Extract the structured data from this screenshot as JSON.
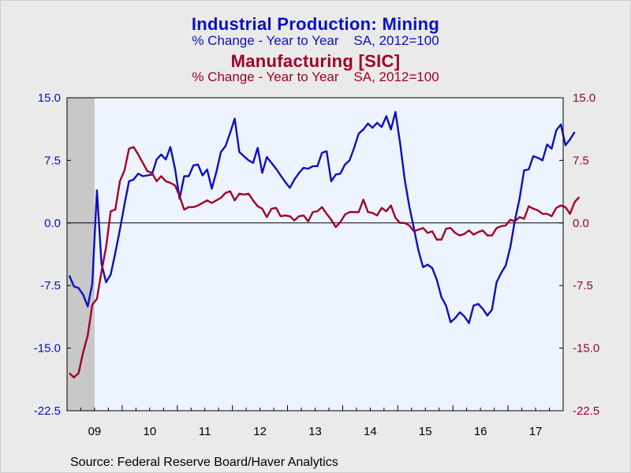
{
  "titles": {
    "mining_title": "Industrial Production: Mining",
    "mining_subtitle": "% Change - Year to Year    SA, 2012=100",
    "manufacturing_title": "Manufacturing [SIC]",
    "manufacturing_subtitle": "% Change - Year to Year    SA, 2012=100"
  },
  "source": "Source:  Federal Reserve Board/Haver Analytics",
  "colors": {
    "mining": "#0a10c0",
    "manufacturing": "#a00028",
    "plot_bg": "#eef4ff",
    "recession": "#c8c8c8"
  },
  "chart_data": {
    "type": "line",
    "x_start": "2009-01",
    "x_end": "2017-12",
    "ylim": [
      -22.5,
      15.0
    ],
    "yticks_left": [
      "15.0",
      "7.5",
      "0.0",
      "-7.5",
      "-15.0",
      "-22.5"
    ],
    "yticks_right": [
      "15.0",
      "7.5",
      "0.0",
      "-7.5",
      "-15.0",
      "-22.5"
    ],
    "xticks": [
      "09",
      "10",
      "11",
      "12",
      "13",
      "14",
      "15",
      "16",
      "17"
    ],
    "zero_line": true,
    "recession_shading": [
      "2009-01",
      "2009-06"
    ],
    "series": [
      {
        "name": "Industrial Production: Mining",
        "color": "#0a10c0",
        "axis": "left",
        "values": [
          -6.3,
          -7.6,
          -7.8,
          -8.6,
          -10.0,
          -7.3,
          3.9,
          -4.9,
          -7.1,
          -6.2,
          -3.6,
          -0.8,
          2.2,
          5.0,
          5.2,
          5.9,
          5.6,
          5.7,
          5.8,
          7.6,
          8.2,
          7.6,
          9.1,
          6.5,
          2.9,
          5.6,
          5.6,
          6.9,
          7.0,
          5.7,
          6.4,
          4.1,
          6.1,
          8.5,
          9.2,
          10.8,
          12.5,
          8.5,
          8.0,
          7.5,
          7.2,
          9.0,
          6.0,
          7.9,
          7.2,
          6.5,
          5.7,
          4.9,
          4.2,
          5.2,
          6.0,
          6.6,
          6.5,
          6.8,
          6.8,
          8.4,
          8.6,
          5.0,
          5.8,
          5.9,
          7.0,
          7.5,
          9.0,
          10.7,
          11.2,
          11.9,
          11.4,
          12.0,
          11.5,
          12.8,
          11.2,
          13.3,
          9.6,
          5.2,
          2.0,
          -0.6,
          -3.3,
          -5.3,
          -5.0,
          -5.4,
          -6.8,
          -8.9,
          -9.9,
          -11.9,
          -11.4,
          -10.7,
          -11.2,
          -12.0,
          -9.9,
          -9.7,
          -10.3,
          -11.1,
          -10.4,
          -7.1,
          -6.0,
          -5.1,
          -2.9,
          0.3,
          2.9,
          6.3,
          6.4,
          8.0,
          7.8,
          7.5,
          9.4,
          8.9,
          11.1,
          11.8,
          9.3,
          10.0,
          10.9
        ]
      },
      {
        "name": "Manufacturing [SIC]",
        "color": "#a00028",
        "axis": "right",
        "values": [
          -18.0,
          -18.5,
          -18.0,
          -15.5,
          -13.5,
          -9.8,
          -9.1,
          -5.8,
          -2.9,
          1.4,
          1.6,
          5.0,
          6.3,
          8.9,
          9.1,
          8.2,
          7.2,
          6.2,
          6.0,
          5.0,
          5.6,
          5.0,
          4.8,
          4.5,
          3.2,
          1.6,
          1.9,
          1.9,
          2.1,
          2.4,
          2.7,
          2.4,
          2.7,
          3.0,
          3.6,
          3.8,
          2.7,
          3.5,
          3.4,
          3.5,
          2.7,
          2.0,
          1.7,
          0.7,
          1.7,
          1.8,
          0.8,
          0.9,
          0.8,
          0.3,
          0.8,
          0.9,
          0.2,
          1.3,
          1.4,
          1.9,
          1.1,
          0.4,
          -0.5,
          0.1,
          1.0,
          1.3,
          1.3,
          1.3,
          2.8,
          1.3,
          1.2,
          0.9,
          1.8,
          1.4,
          2.1,
          0.6,
          0.0,
          0.0,
          -0.3,
          -1.0,
          -0.8,
          -0.6,
          -1.2,
          -1.0,
          -2.0,
          -2.0,
          -0.7,
          -0.6,
          -1.2,
          -1.5,
          -1.3,
          -0.9,
          -1.4,
          -1.1,
          -0.9,
          -1.5,
          -1.5,
          -0.6,
          -0.4,
          -0.3,
          0.4,
          0.2,
          0.7,
          0.5,
          2.0,
          1.7,
          1.5,
          1.1,
          1.1,
          0.8,
          1.8,
          2.1,
          1.9,
          1.1,
          2.5,
          3.1
        ]
      }
    ]
  }
}
